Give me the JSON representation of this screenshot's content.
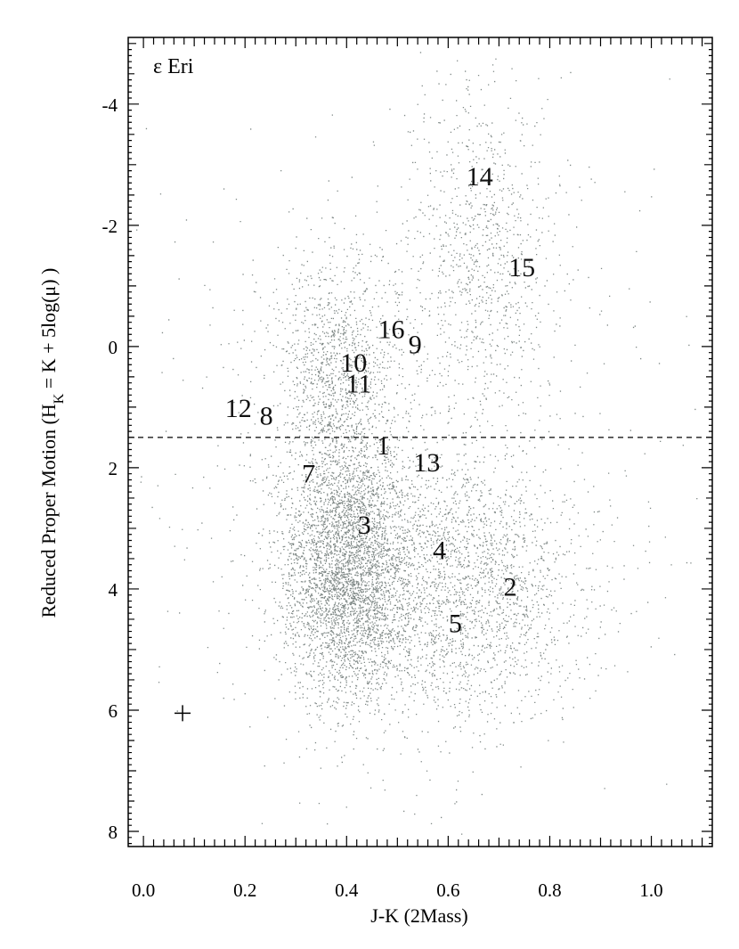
{
  "chart_data": {
    "type": "scatter",
    "title": "",
    "panel_label": "ε Eri",
    "xlabel": "J-K (2Mass)",
    "ylabel_main": "Reduced Proper Motion (H",
    "ylabel_sub": "K",
    "ylabel_rest": " = K + 5log(μ) )",
    "xlim": [
      -0.03,
      1.12
    ],
    "ylim": [
      8.25,
      -5.1
    ],
    "y_inverted": true,
    "x_ticks": [
      0.0,
      0.2,
      0.4,
      0.6,
      0.8,
      1.0
    ],
    "x_tick_labels": [
      "0.0",
      "0.2",
      "0.4",
      "0.6",
      "0.8",
      "1.0"
    ],
    "y_ticks": [
      -4,
      -2,
      0,
      2,
      4,
      6,
      8
    ],
    "y_tick_labels": [
      "-4",
      "-2",
      "0",
      "2",
      "4",
      "6",
      "8"
    ],
    "grid": false,
    "colors": {
      "points": "#7f8886",
      "labels": "#111111",
      "axes": "#000000"
    },
    "reference_line": {
      "y": 1.5,
      "style": "dashed"
    },
    "error_marker": {
      "x": 0.077,
      "y": 6.05
    },
    "labeled_stars": [
      {
        "label": "1",
        "x": 0.472,
        "y": 1.62
      },
      {
        "label": "2",
        "x": 0.722,
        "y": 3.95
      },
      {
        "label": "3",
        "x": 0.435,
        "y": 2.93
      },
      {
        "label": "4",
        "x": 0.583,
        "y": 3.35
      },
      {
        "label": "5",
        "x": 0.614,
        "y": 4.55
      },
      {
        "label": "7",
        "x": 0.325,
        "y": 2.08
      },
      {
        "label": "8",
        "x": 0.242,
        "y": 1.13
      },
      {
        "label": "9",
        "x": 0.535,
        "y": -0.05
      },
      {
        "label": "10",
        "x": 0.414,
        "y": 0.25
      },
      {
        "label": "11",
        "x": 0.424,
        "y": 0.6
      },
      {
        "label": "12",
        "x": 0.187,
        "y": 1.0
      },
      {
        "label": "13",
        "x": 0.558,
        "y": 1.9
      },
      {
        "label": "14",
        "x": 0.662,
        "y": -2.82
      },
      {
        "label": "15",
        "x": 0.745,
        "y": -1.32
      },
      {
        "label": "16",
        "x": 0.488,
        "y": -0.3
      }
    ],
    "field_stars": {
      "count": 9000,
      "note_components": [
        {
          "weight": 0.42,
          "mean_x": 0.4,
          "mean_y": 3.7,
          "sd_x": 0.065,
          "sd_y": 1.1
        },
        {
          "weight": 0.25,
          "mean_x": 0.62,
          "mean_y": 4.0,
          "sd_x": 0.12,
          "sd_y": 1.1
        },
        {
          "weight": 0.14,
          "mean_x": 0.38,
          "mean_y": 0.5,
          "sd_x": 0.06,
          "sd_y": 1.0
        },
        {
          "weight": 0.1,
          "mean_x": 0.66,
          "mean_y": -1.5,
          "sd_x": 0.07,
          "sd_y": 1.4
        },
        {
          "weight": 0.09,
          "mean_x": 0.5,
          "mean_y": 1.5,
          "sd_x": 0.3,
          "sd_y": 2.6
        }
      ]
    }
  }
}
